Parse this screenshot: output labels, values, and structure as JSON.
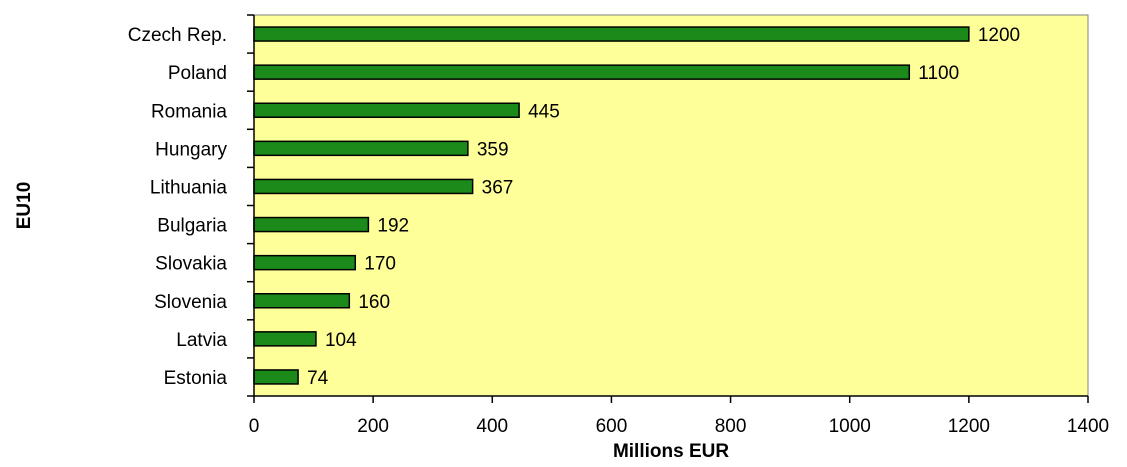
{
  "chart_data": {
    "type": "bar",
    "orientation": "horizontal",
    "categories": [
      "Czech Rep.",
      "Poland",
      "Romania",
      "Hungary",
      "Lithuania",
      "Bulgaria",
      "Slovakia",
      "Slovenia",
      "Latvia",
      "Estonia"
    ],
    "values": [
      1200,
      1100,
      445,
      359,
      367,
      192,
      170,
      160,
      104,
      74
    ],
    "xlabel": "Millions EUR",
    "ylabel": "EU10",
    "xlim": [
      0,
      1400
    ],
    "xticks": [
      0,
      200,
      400,
      600,
      800,
      1000,
      1200,
      1400
    ],
    "grid": false,
    "data_labels": true,
    "colors": {
      "bar_fill": "#1b8a1b",
      "bar_stroke": "#000000",
      "plot_background": "#ffff99",
      "axis": "#000000"
    }
  }
}
